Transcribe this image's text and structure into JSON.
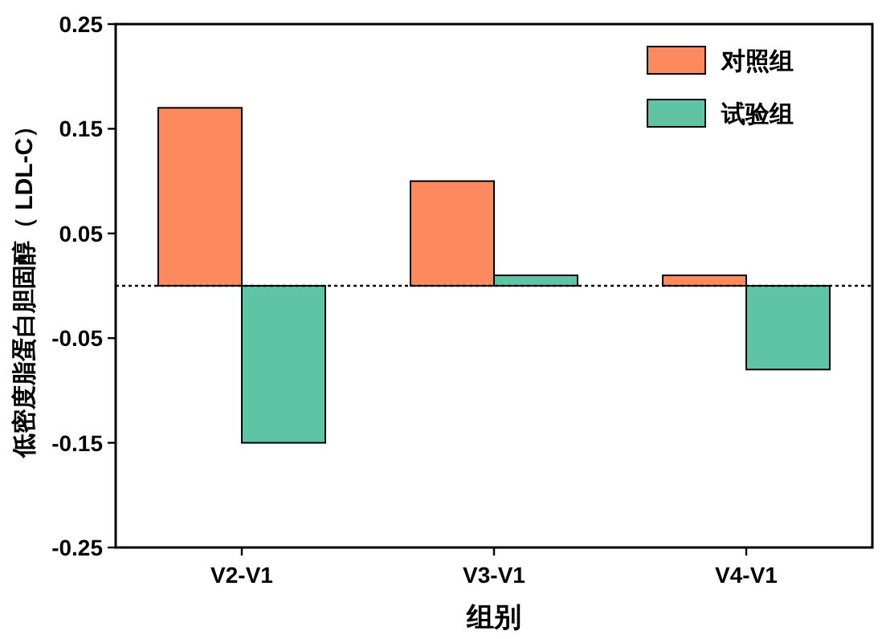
{
  "chart_data": {
    "type": "bar",
    "xlabel": "组别",
    "ylabel": "低密度脂蛋白胆固醇（ LDL-C）",
    "categories": [
      "V2-V1",
      "V3-V1",
      "V4-V1"
    ],
    "series": [
      {
        "name": "对照组",
        "color": "#fd8a5e",
        "values": [
          0.17,
          0.1,
          0.01
        ]
      },
      {
        "name": "试验组",
        "color": "#5fc4a4",
        "values": [
          -0.15,
          0.01,
          -0.08
        ]
      }
    ],
    "ylim": [
      -0.25,
      0.25
    ],
    "yticks": [
      -0.25,
      -0.15,
      -0.05,
      0.05,
      0.15,
      0.25
    ],
    "ref_lines": [
      {
        "axis": "y",
        "value": 0,
        "line_style": "dotted"
      }
    ],
    "legend": "top right"
  }
}
